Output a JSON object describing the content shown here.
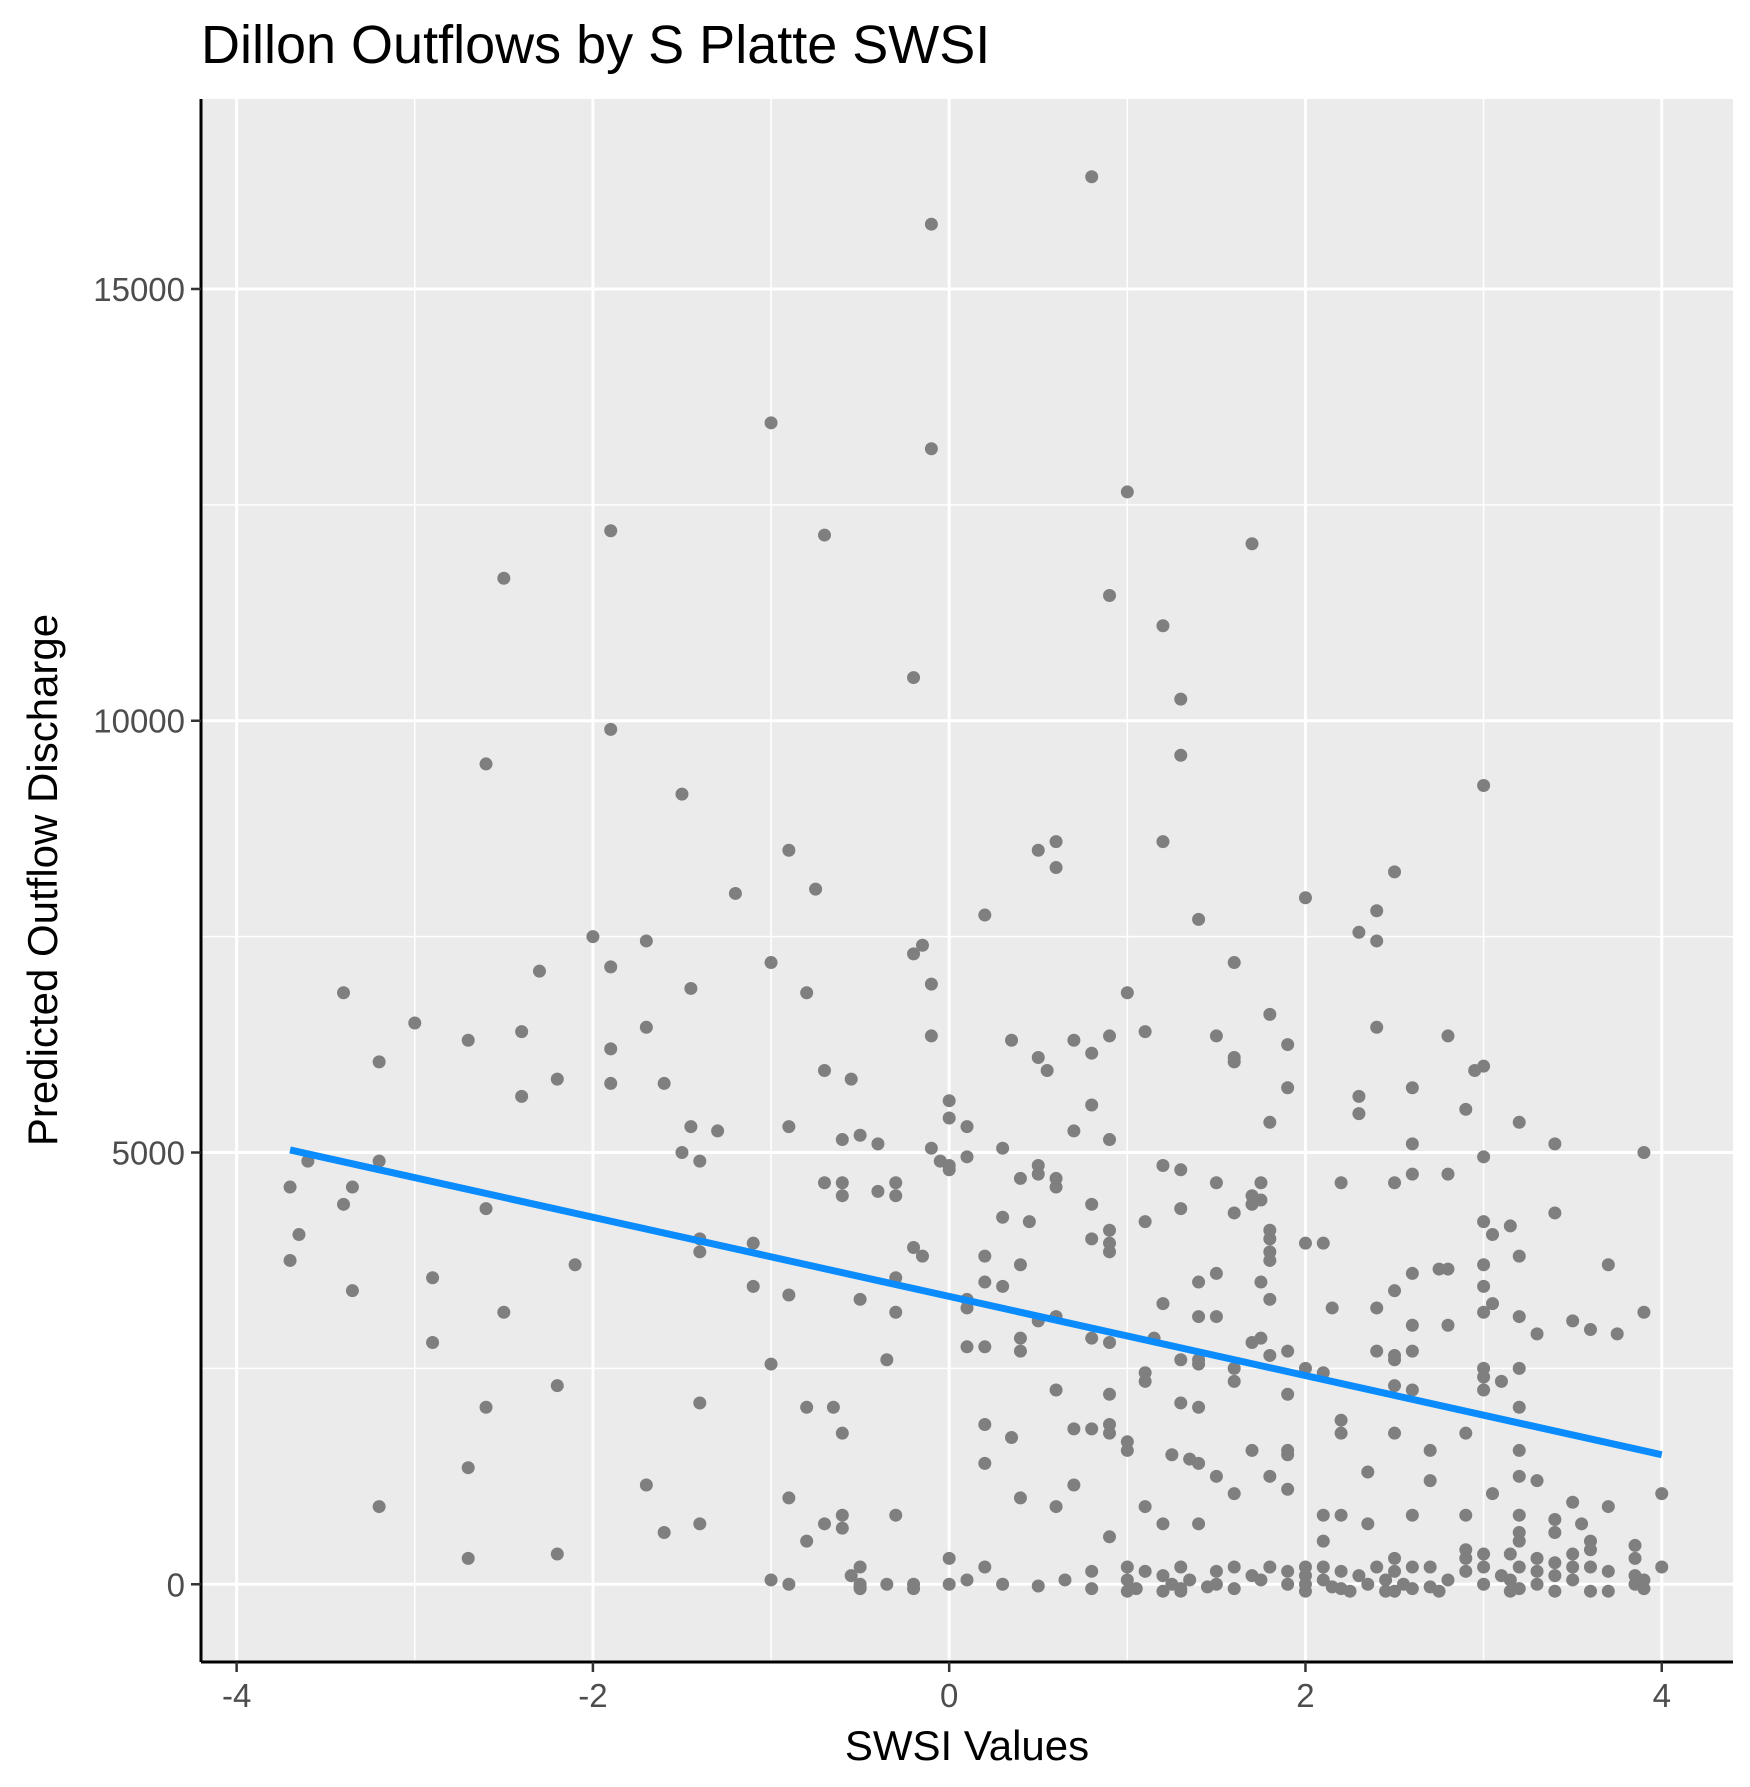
{
  "chart_data": {
    "type": "scatter",
    "title": "Dillon Outflows by S Platte SWSI",
    "xlabel": "SWSI Values",
    "ylabel": "Predicted Outflow Discharge",
    "xlim": [
      -4.2,
      4.4
    ],
    "ylim": [
      -900,
      17200
    ],
    "x_ticks": [
      {
        "value": -4,
        "label": "-4"
      },
      {
        "value": -2,
        "label": "-2"
      },
      {
        "value": 0,
        "label": "0"
      },
      {
        "value": 2,
        "label": "2"
      },
      {
        "value": 4,
        "label": "4"
      }
    ],
    "y_ticks": [
      {
        "value": 0,
        "label": "0"
      },
      {
        "value": 5000,
        "label": "5000"
      },
      {
        "value": 10000,
        "label": "10000"
      },
      {
        "value": 15000,
        "label": "15000"
      }
    ],
    "minor_x": [
      -3,
      -1,
      1,
      3
    ],
    "minor_y": [
      2500,
      7500,
      12500
    ],
    "grid": true,
    "legend": "none",
    "colors": {
      "panel": "#ebebeb",
      "grid": "#ffffff",
      "points": "#7f7f7f",
      "trend": "#0a8cff",
      "axis": "#000000"
    },
    "trend_line": {
      "x": [
        -3.7,
        4.0
      ],
      "y": [
        5030,
        1500
      ]
    },
    "points": [
      [
        0.8,
        16300
      ],
      [
        -0.1,
        15750
      ],
      [
        -1.0,
        13450
      ],
      [
        -0.1,
        13150
      ],
      [
        1.0,
        12650
      ],
      [
        -1.9,
        12200
      ],
      [
        -0.7,
        12150
      ],
      [
        1.7,
        12050
      ],
      [
        -2.5,
        11650
      ],
      [
        0.9,
        11450
      ],
      [
        1.2,
        11100
      ],
      [
        -0.2,
        10500
      ],
      [
        1.3,
        10250
      ],
      [
        -1.9,
        9900
      ],
      [
        1.3,
        9600
      ],
      [
        -2.6,
        9500
      ],
      [
        3.0,
        9250
      ],
      [
        -1.5,
        9150
      ],
      [
        0.6,
        8600
      ],
      [
        1.2,
        8600
      ],
      [
        -0.9,
        8500
      ],
      [
        0.5,
        8500
      ],
      [
        0.6,
        8300
      ],
      [
        2.5,
        8250
      ],
      [
        -0.75,
        8050
      ],
      [
        -1.2,
        8000
      ],
      [
        2.0,
        7950
      ],
      [
        2.4,
        7800
      ],
      [
        0.2,
        7750
      ],
      [
        1.4,
        7700
      ],
      [
        -2.0,
        7500
      ],
      [
        -1.7,
        7450
      ],
      [
        2.3,
        7550
      ],
      [
        2.4,
        7450
      ],
      [
        -0.15,
        7400
      ],
      [
        -0.2,
        7300
      ],
      [
        1.6,
        7200
      ],
      [
        -1.9,
        7150
      ],
      [
        -1.0,
        7200
      ],
      [
        -2.3,
        7100
      ],
      [
        -0.1,
        6950
      ],
      [
        -1.45,
        6900
      ],
      [
        -3.4,
        6850
      ],
      [
        1.0,
        6850
      ],
      [
        -0.8,
        6850
      ],
      [
        1.8,
        6600
      ],
      [
        -3.0,
        6500
      ],
      [
        -1.7,
        6450
      ],
      [
        -2.4,
        6400
      ],
      [
        2.4,
        6450
      ],
      [
        1.1,
        6400
      ],
      [
        0.9,
        6350
      ],
      [
        1.5,
        6350
      ],
      [
        -0.1,
        6350
      ],
      [
        2.8,
        6350
      ],
      [
        -2.7,
        6300
      ],
      [
        0.35,
        6300
      ],
      [
        0.7,
        6300
      ],
      [
        1.9,
        6250
      ],
      [
        -1.9,
        6200
      ],
      [
        0.8,
        6150
      ],
      [
        0.5,
        6100
      ],
      [
        1.6,
        6100
      ],
      [
        -3.2,
        6050
      ],
      [
        1.6,
        6050
      ],
      [
        3.0,
        6000
      ],
      [
        0.55,
        5950
      ],
      [
        -0.7,
        5950
      ],
      [
        2.95,
        5950
      ],
      [
        -0.55,
        5850
      ],
      [
        -1.6,
        5800
      ],
      [
        -2.2,
        5850
      ],
      [
        -1.9,
        5800
      ],
      [
        1.9,
        5750
      ],
      [
        2.6,
        5750
      ],
      [
        -2.4,
        5650
      ],
      [
        2.3,
        5650
      ],
      [
        0.0,
        5600
      ],
      [
        0.8,
        5550
      ],
      [
        2.9,
        5500
      ],
      [
        2.3,
        5450
      ],
      [
        0.0,
        5400
      ],
      [
        3.2,
        5350
      ],
      [
        1.8,
        5350
      ],
      [
        -1.45,
        5300
      ],
      [
        0.1,
        5300
      ],
      [
        -0.9,
        5300
      ],
      [
        0.7,
        5250
      ],
      [
        -1.3,
        5250
      ],
      [
        -0.5,
        5200
      ],
      [
        0.9,
        5150
      ],
      [
        -0.6,
        5150
      ],
      [
        -0.4,
        5100
      ],
      [
        2.6,
        5100
      ],
      [
        3.4,
        5100
      ],
      [
        -0.1,
        5050
      ],
      [
        0.3,
        5050
      ],
      [
        -1.5,
        5000
      ],
      [
        3.0,
        4950
      ],
      [
        3.9,
        5000
      ],
      [
        0.1,
        4950
      ],
      [
        -0.05,
        4900
      ],
      [
        0.0,
        4850
      ],
      [
        -3.6,
        4900
      ],
      [
        -3.2,
        4900
      ],
      [
        -1.4,
        4900
      ],
      [
        0.5,
        4850
      ],
      [
        1.2,
        4850
      ],
      [
        1.3,
        4800
      ],
      [
        0.0,
        4800
      ],
      [
        2.6,
        4750
      ],
      [
        2.8,
        4750
      ],
      [
        0.5,
        4750
      ],
      [
        0.6,
        4700
      ],
      [
        0.4,
        4700
      ],
      [
        -0.6,
        4650
      ],
      [
        -0.7,
        4650
      ],
      [
        1.5,
        4650
      ],
      [
        2.2,
        4650
      ],
      [
        -0.3,
        4650
      ],
      [
        2.5,
        4650
      ],
      [
        1.75,
        4650
      ],
      [
        0.6,
        4600
      ],
      [
        -3.7,
        4600
      ],
      [
        -3.35,
        4600
      ],
      [
        -0.4,
        4550
      ],
      [
        -0.3,
        4500
      ],
      [
        -0.6,
        4500
      ],
      [
        1.7,
        4500
      ],
      [
        1.75,
        4450
      ],
      [
        -3.4,
        4400
      ],
      [
        1.7,
        4400
      ],
      [
        0.8,
        4400
      ],
      [
        -2.6,
        4350
      ],
      [
        1.3,
        4350
      ],
      [
        3.4,
        4300
      ],
      [
        1.6,
        4300
      ],
      [
        0.3,
        4250
      ],
      [
        3.0,
        4200
      ],
      [
        1.1,
        4200
      ],
      [
        0.45,
        4200
      ],
      [
        3.15,
        4150
      ],
      [
        0.9,
        4100
      ],
      [
        1.8,
        4100
      ],
      [
        -3.65,
        4050
      ],
      [
        3.05,
        4050
      ],
      [
        0.8,
        4000
      ],
      [
        1.8,
        4000
      ],
      [
        -1.4,
        4000
      ],
      [
        2.0,
        3950
      ],
      [
        -1.1,
        3950
      ],
      [
        2.1,
        3950
      ],
      [
        0.9,
        3950
      ],
      [
        -1.4,
        3850
      ],
      [
        1.8,
        3850
      ],
      [
        -0.2,
        3900
      ],
      [
        -0.15,
        3800
      ],
      [
        0.9,
        3850
      ],
      [
        0.2,
        3800
      ],
      [
        1.8,
        3750
      ],
      [
        3.2,
        3800
      ],
      [
        -3.7,
        3750
      ],
      [
        0.4,
        3700
      ],
      [
        -2.1,
        3700
      ],
      [
        2.75,
        3650
      ],
      [
        2.8,
        3650
      ],
      [
        3.0,
        3700
      ],
      [
        3.7,
        3700
      ],
      [
        1.5,
        3600
      ],
      [
        2.6,
        3600
      ],
      [
        -0.3,
        3550
      ],
      [
        -2.9,
        3550
      ],
      [
        0.2,
        3500
      ],
      [
        1.4,
        3500
      ],
      [
        1.75,
        3500
      ],
      [
        3.0,
        3450
      ],
      [
        -1.1,
        3450
      ],
      [
        0.3,
        3450
      ],
      [
        2.5,
        3400
      ],
      [
        -3.35,
        3400
      ],
      [
        -0.9,
        3350
      ],
      [
        1.8,
        3300
      ],
      [
        -0.5,
        3300
      ],
      [
        0.1,
        3300
      ],
      [
        1.2,
        3250
      ],
      [
        3.05,
        3250
      ],
      [
        2.4,
        3200
      ],
      [
        2.15,
        3200
      ],
      [
        0.1,
        3200
      ],
      [
        -2.5,
        3150
      ],
      [
        -0.3,
        3150
      ],
      [
        3.0,
        3150
      ],
      [
        3.9,
        3150
      ],
      [
        1.4,
        3100
      ],
      [
        1.5,
        3100
      ],
      [
        0.6,
        3100
      ],
      [
        3.2,
        3100
      ],
      [
        3.5,
        3050
      ],
      [
        3.6,
        2950
      ],
      [
        2.6,
        3000
      ],
      [
        2.8,
        3000
      ],
      [
        0.5,
        3050
      ],
      [
        3.3,
        2900
      ],
      [
        3.75,
        2900
      ],
      [
        1.15,
        2850
      ],
      [
        0.8,
        2850
      ],
      [
        0.4,
        2850
      ],
      [
        1.7,
        2800
      ],
      [
        -2.9,
        2800
      ],
      [
        0.9,
        2800
      ],
      [
        1.75,
        2850
      ],
      [
        0.2,
        2750
      ],
      [
        0.1,
        2750
      ],
      [
        2.6,
        2700
      ],
      [
        0.4,
        2700
      ],
      [
        2.4,
        2700
      ],
      [
        1.9,
        2700
      ],
      [
        1.8,
        2650
      ],
      [
        2.5,
        2650
      ],
      [
        -0.35,
        2600
      ],
      [
        2.5,
        2600
      ],
      [
        1.4,
        2600
      ],
      [
        1.3,
        2600
      ],
      [
        -1.0,
        2550
      ],
      [
        1.4,
        2550
      ],
      [
        1.6,
        2500
      ],
      [
        3.2,
        2500
      ],
      [
        2.0,
        2500
      ],
      [
        3.0,
        2500
      ],
      [
        1.1,
        2450
      ],
      [
        2.1,
        2450
      ],
      [
        3.0,
        2400
      ],
      [
        3.1,
        2350
      ],
      [
        1.1,
        2350
      ],
      [
        1.6,
        2350
      ],
      [
        2.5,
        2300
      ],
      [
        -2.2,
        2300
      ],
      [
        0.6,
        2250
      ],
      [
        2.6,
        2250
      ],
      [
        3.0,
        2250
      ],
      [
        0.9,
        2200
      ],
      [
        1.9,
        2200
      ],
      [
        -1.4,
        2100
      ],
      [
        1.3,
        2100
      ],
      [
        -0.8,
        2050
      ],
      [
        -2.6,
        2050
      ],
      [
        -0.65,
        2050
      ],
      [
        3.2,
        2050
      ],
      [
        1.4,
        2050
      ],
      [
        2.2,
        1900
      ],
      [
        0.2,
        1850
      ],
      [
        0.9,
        1850
      ],
      [
        0.7,
        1800
      ],
      [
        0.8,
        1800
      ],
      [
        0.9,
        1750
      ],
      [
        2.2,
        1750
      ],
      [
        2.9,
        1750
      ],
      [
        2.5,
        1750
      ],
      [
        -0.6,
        1750
      ],
      [
        0.35,
        1700
      ],
      [
        1.0,
        1650
      ],
      [
        1.7,
        1550
      ],
      [
        2.7,
        1550
      ],
      [
        1.9,
        1550
      ],
      [
        1.0,
        1550
      ],
      [
        3.2,
        1550
      ],
      [
        1.25,
        1500
      ],
      [
        1.9,
        1500
      ],
      [
        1.35,
        1450
      ],
      [
        1.4,
        1400
      ],
      [
        0.2,
        1400
      ],
      [
        -2.7,
        1350
      ],
      [
        2.35,
        1300
      ],
      [
        1.8,
        1250
      ],
      [
        3.2,
        1250
      ],
      [
        1.5,
        1250
      ],
      [
        2.7,
        1200
      ],
      [
        3.3,
        1200
      ],
      [
        0.7,
        1150
      ],
      [
        -1.7,
        1150
      ],
      [
        1.9,
        1100
      ],
      [
        1.6,
        1050
      ],
      [
        3.05,
        1050
      ],
      [
        4.0,
        1050
      ],
      [
        0.4,
        1000
      ],
      [
        -0.9,
        1000
      ],
      [
        3.5,
        950
      ],
      [
        -3.2,
        900
      ],
      [
        1.1,
        900
      ],
      [
        0.6,
        900
      ],
      [
        3.7,
        900
      ],
      [
        3.2,
        800
      ],
      [
        -0.6,
        800
      ],
      [
        2.1,
        800
      ],
      [
        2.2,
        800
      ],
      [
        2.6,
        800
      ],
      [
        2.9,
        800
      ],
      [
        3.4,
        750
      ],
      [
        -0.3,
        800
      ],
      [
        1.4,
        700
      ],
      [
        -0.7,
        700
      ],
      [
        2.35,
        700
      ],
      [
        -1.4,
        700
      ],
      [
        3.55,
        700
      ],
      [
        1.2,
        700
      ],
      [
        -0.6,
        650
      ],
      [
        3.2,
        600
      ],
      [
        -1.6,
        600
      ],
      [
        3.4,
        600
      ],
      [
        0.9,
        550
      ],
      [
        3.2,
        500
      ],
      [
        3.6,
        500
      ],
      [
        -0.8,
        500
      ],
      [
        2.1,
        500
      ],
      [
        3.85,
        450
      ],
      [
        3.6,
        400
      ],
      [
        2.9,
        400
      ],
      [
        3.0,
        350
      ],
      [
        -2.2,
        350
      ],
      [
        -2.7,
        300
      ],
      [
        3.15,
        350
      ],
      [
        3.3,
        300
      ],
      [
        0.0,
        300
      ],
      [
        2.5,
        300
      ],
      [
        3.85,
        300
      ],
      [
        2.9,
        300
      ],
      [
        3.4,
        250
      ],
      [
        3.5,
        350
      ],
      [
        0.2,
        200
      ],
      [
        -0.5,
        200
      ],
      [
        1.0,
        200
      ],
      [
        1.3,
        200
      ],
      [
        1.6,
        200
      ],
      [
        1.8,
        200
      ],
      [
        2.0,
        200
      ],
      [
        2.1,
        200
      ],
      [
        2.4,
        200
      ],
      [
        2.6,
        200
      ],
      [
        2.7,
        200
      ],
      [
        3.0,
        200
      ],
      [
        3.2,
        200
      ],
      [
        3.5,
        200
      ],
      [
        3.6,
        200
      ],
      [
        4.0,
        200
      ],
      [
        0.8,
        150
      ],
      [
        1.1,
        150
      ],
      [
        1.5,
        150
      ],
      [
        1.9,
        150
      ],
      [
        2.2,
        150
      ],
      [
        2.5,
        150
      ],
      [
        2.9,
        150
      ],
      [
        3.3,
        150
      ],
      [
        3.7,
        150
      ],
      [
        1.2,
        100
      ],
      [
        1.7,
        100
      ],
      [
        2.0,
        100
      ],
      [
        2.3,
        100
      ],
      [
        3.1,
        100
      ],
      [
        3.4,
        100
      ],
      [
        3.85,
        100
      ],
      [
        -0.55,
        100
      ],
      [
        0.1,
        50
      ],
      [
        0.65,
        50
      ],
      [
        1.0,
        50
      ],
      [
        1.35,
        50
      ],
      [
        1.75,
        50
      ],
      [
        2.1,
        50
      ],
      [
        2.45,
        50
      ],
      [
        2.8,
        50
      ],
      [
        3.15,
        50
      ],
      [
        3.5,
        50
      ],
      [
        3.9,
        50
      ],
      [
        -1.0,
        50
      ],
      [
        -0.9,
        0
      ],
      [
        -0.5,
        0
      ],
      [
        -0.35,
        0
      ],
      [
        -0.2,
        0
      ],
      [
        0.0,
        0
      ],
      [
        0.3,
        0
      ],
      [
        1.25,
        0
      ],
      [
        1.5,
        0
      ],
      [
        1.9,
        0
      ],
      [
        2.0,
        0
      ],
      [
        2.35,
        0
      ],
      [
        2.55,
        0
      ],
      [
        3.0,
        0
      ],
      [
        3.3,
        0
      ],
      [
        3.85,
        0
      ],
      [
        -0.5,
        -50
      ],
      [
        -0.2,
        -50
      ],
      [
        0.8,
        -50
      ],
      [
        1.05,
        -50
      ],
      [
        1.3,
        -50
      ],
      [
        1.6,
        -50
      ],
      [
        2.2,
        -50
      ],
      [
        2.6,
        -50
      ],
      [
        3.2,
        -50
      ],
      [
        3.9,
        -50
      ],
      [
        1.0,
        -80
      ],
      [
        1.2,
        -80
      ],
      [
        1.3,
        -80
      ],
      [
        2.0,
        -80
      ],
      [
        2.25,
        -80
      ],
      [
        2.45,
        -80
      ],
      [
        2.5,
        -80
      ],
      [
        2.75,
        -80
      ],
      [
        3.15,
        -80
      ],
      [
        3.4,
        -80
      ],
      [
        3.6,
        -80
      ],
      [
        3.7,
        -80
      ],
      [
        -0.5,
        -30
      ],
      [
        0.5,
        -20
      ],
      [
        1.45,
        -30
      ],
      [
        2.15,
        -30
      ],
      [
        2.7,
        -30
      ]
    ]
  }
}
